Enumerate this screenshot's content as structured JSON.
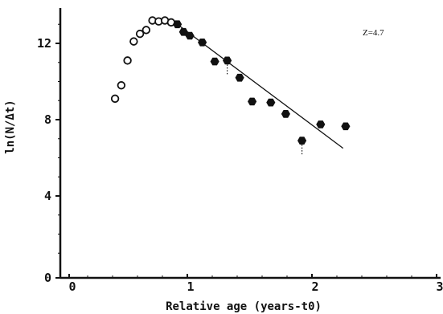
{
  "chart_data": {
    "type": "scatter",
    "title": "",
    "xlabel": "Relative age (years-t0)",
    "ylabel": "ln(N/Δt)",
    "xlim": [
      0,
      3
    ],
    "ylim": [
      0,
      14
    ],
    "x_ticks": [
      0,
      1,
      2,
      3
    ],
    "x_tick_labels": [
      "0",
      "1",
      "2",
      "3"
    ],
    "y_ticks": [
      0,
      4,
      8,
      12
    ],
    "y_tick_labels": [
      "0",
      "4",
      "8",
      "12"
    ],
    "grid": false,
    "annotation": "Z=4.7",
    "series": [
      {
        "marker": "open-circle",
        "color": "#111111",
        "points": [
          [
            0.42,
            9.1
          ],
          [
            0.47,
            9.8
          ],
          [
            0.52,
            11.1
          ],
          [
            0.57,
            12.1
          ],
          [
            0.62,
            12.5
          ],
          [
            0.67,
            12.7
          ],
          [
            0.72,
            13.2
          ],
          [
            0.77,
            13.15
          ],
          [
            0.82,
            13.2
          ],
          [
            0.87,
            13.1
          ]
        ]
      },
      {
        "marker": "filled-hexagon",
        "color": "#111111",
        "points": [
          [
            0.92,
            13.0
          ],
          [
            0.97,
            12.6
          ],
          [
            1.02,
            12.4
          ],
          [
            1.12,
            12.05
          ],
          [
            1.22,
            11.05
          ],
          [
            1.32,
            11.1
          ],
          [
            1.42,
            10.2
          ],
          [
            1.52,
            8.95
          ],
          [
            1.67,
            8.9
          ],
          [
            1.79,
            8.3
          ],
          [
            1.92,
            6.9
          ],
          [
            2.07,
            7.75
          ],
          [
            2.27,
            7.65
          ]
        ]
      }
    ],
    "regression_line": {
      "x": [
        0.92,
        2.25
      ],
      "y": [
        13.0,
        6.5
      ]
    },
    "error_bars": [
      {
        "x": 1.32,
        "y_from": 11.1,
        "y_to": 10.3
      },
      {
        "x": 1.92,
        "y_from": 6.9,
        "y_to": 6.1
      }
    ]
  }
}
